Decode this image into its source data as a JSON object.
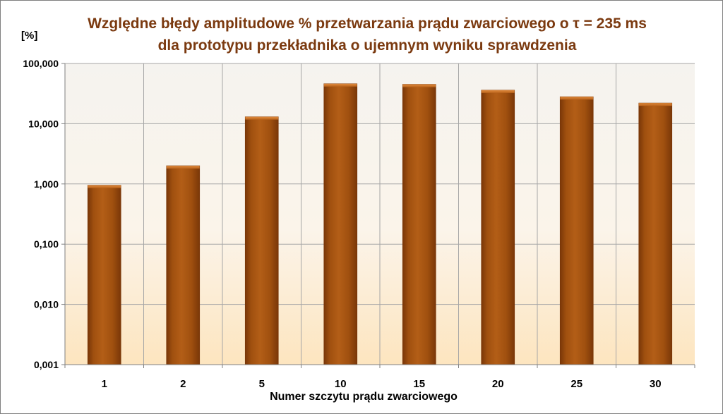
{
  "chart_data": {
    "type": "bar",
    "title_line1": "Względne błędy amplitudowe % przetwarzania prądu zwarciowego o τ = 235 ms",
    "title_line2": "dla prototypu przekładnika o ujemnym wyniku sprawdzenia",
    "ylabel": "[%]",
    "xlabel": "Numer szczytu prądu zwarciowego",
    "yscale": "log",
    "ylim": [
      0.001,
      100
    ],
    "ytick_values": [
      0.001,
      0.01,
      0.1,
      1,
      10,
      100
    ],
    "ytick_labels": [
      "0,001",
      "0,010",
      "0,100",
      "1,000",
      "10,000",
      "100,000"
    ],
    "categories": [
      "1",
      "2",
      "5",
      "10",
      "15",
      "20",
      "25",
      "30"
    ],
    "values": [
      0.95,
      2.0,
      13.0,
      46.0,
      45.0,
      36.0,
      28.0,
      22.0
    ],
    "grid": true,
    "legend": "none",
    "colors": {
      "bar": "#a0500f",
      "bar_light": "#c8702a",
      "bar_dark": "#7a3708",
      "title": "#7b3a10",
      "grid": "#a6a6a6",
      "plot_bg_top": "#f5f3ef",
      "plot_bg_bottom": "#fde5bf"
    }
  }
}
